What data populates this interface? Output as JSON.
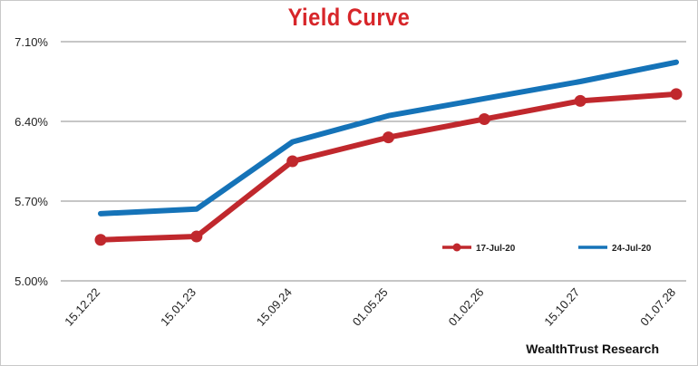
{
  "chart_data": {
    "type": "line",
    "title": "Yield Curve",
    "categories": [
      "15.12.22",
      "15.01.23",
      "15.09.24",
      "01.05.25",
      "01.02.26",
      "15.10.27",
      "01.07.28"
    ],
    "yticks": [
      "5.00%",
      "5.70%",
      "6.40%",
      "7.10%"
    ],
    "ylim": [
      5.0,
      7.1
    ],
    "grid": true,
    "legend_position": "bottom-right",
    "series": [
      {
        "name": "17-Jul-20",
        "color": "#c0282d",
        "markers": true,
        "values": [
          5.36,
          5.39,
          6.05,
          6.26,
          6.42,
          6.58,
          6.64
        ]
      },
      {
        "name": "24-Jul-20",
        "color": "#1573b8",
        "markers": false,
        "values": [
          5.59,
          5.63,
          6.22,
          6.45,
          6.6,
          6.75,
          6.92
        ]
      }
    ]
  },
  "source_text": "WealthTrust Research"
}
